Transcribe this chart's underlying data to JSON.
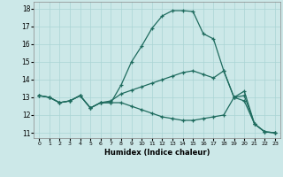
{
  "xlabel": "Humidex (Indice chaleur)",
  "bg_color": "#cce8e8",
  "line_color": "#1e6b5e",
  "grid_color": "#aad4d4",
  "xlim": [
    -0.5,
    23.5
  ],
  "ylim": [
    10.7,
    18.4
  ],
  "xticks": [
    0,
    1,
    2,
    3,
    4,
    5,
    6,
    7,
    8,
    9,
    10,
    11,
    12,
    13,
    14,
    15,
    16,
    17,
    18,
    19,
    20,
    21,
    22,
    23
  ],
  "yticks": [
    11,
    12,
    13,
    14,
    15,
    16,
    17,
    18
  ],
  "line1_x": [
    0,
    1,
    2,
    3,
    4,
    5,
    6,
    7,
    8,
    9,
    10,
    11,
    12,
    13,
    14,
    15,
    16,
    17,
    18,
    19,
    20,
    21,
    22,
    23
  ],
  "line1_y": [
    13.1,
    13.0,
    12.7,
    12.8,
    13.1,
    12.4,
    12.7,
    12.7,
    13.7,
    15.0,
    15.9,
    16.9,
    17.6,
    17.9,
    17.9,
    17.85,
    16.6,
    16.3,
    14.5,
    13.0,
    13.35,
    11.5,
    11.05,
    11.0
  ],
  "line2_x": [
    0,
    1,
    2,
    3,
    4,
    5,
    6,
    7,
    8,
    9,
    10,
    11,
    12,
    13,
    14,
    15,
    16,
    17,
    18,
    19,
    20,
    21,
    22,
    23
  ],
  "line2_y": [
    13.1,
    13.0,
    12.7,
    12.8,
    13.1,
    12.4,
    12.7,
    12.8,
    13.2,
    13.4,
    13.6,
    13.8,
    14.0,
    14.2,
    14.4,
    14.5,
    14.3,
    14.1,
    14.5,
    13.0,
    13.1,
    11.5,
    11.05,
    11.0
  ],
  "line3_x": [
    0,
    1,
    2,
    3,
    4,
    5,
    6,
    7,
    8,
    9,
    10,
    11,
    12,
    13,
    14,
    15,
    16,
    17,
    18,
    19,
    20,
    21,
    22,
    23
  ],
  "line3_y": [
    13.1,
    13.0,
    12.7,
    12.8,
    13.1,
    12.4,
    12.7,
    12.7,
    12.7,
    12.5,
    12.3,
    12.1,
    11.9,
    11.8,
    11.7,
    11.7,
    11.8,
    11.9,
    12.0,
    13.0,
    12.8,
    11.5,
    11.05,
    11.0
  ]
}
